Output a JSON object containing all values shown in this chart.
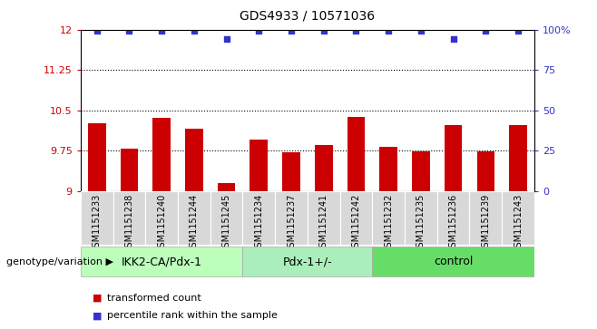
{
  "title": "GDS4933 / 10571036",
  "samples": [
    "GSM1151233",
    "GSM1151238",
    "GSM1151240",
    "GSM1151244",
    "GSM1151245",
    "GSM1151234",
    "GSM1151237",
    "GSM1151241",
    "GSM1151242",
    "GSM1151232",
    "GSM1151235",
    "GSM1151236",
    "GSM1151239",
    "GSM1151243"
  ],
  "bar_values": [
    10.25,
    9.78,
    10.35,
    10.15,
    9.15,
    9.95,
    9.72,
    9.85,
    10.37,
    9.82,
    9.73,
    10.22,
    9.73,
    10.22
  ],
  "percentile_values": [
    99,
    99,
    99,
    99,
    94,
    99,
    99,
    99,
    99,
    99,
    99,
    94,
    99,
    99
  ],
  "bar_color": "#cc0000",
  "dot_color": "#3333cc",
  "ylim_left": [
    9,
    12
  ],
  "ylim_right": [
    0,
    100
  ],
  "yticks_left": [
    9,
    9.75,
    10.5,
    11.25,
    12
  ],
  "yticks_right": [
    0,
    25,
    50,
    75,
    100
  ],
  "ytick_labels_left": [
    "9",
    "9.75",
    "10.5",
    "11.25",
    "12"
  ],
  "ytick_labels_right": [
    "0",
    "25",
    "50",
    "75",
    "100%"
  ],
  "hlines": [
    9.75,
    10.5,
    11.25
  ],
  "groups": [
    {
      "label": "IKK2-CA/Pdx-1",
      "start": 0,
      "end": 5
    },
    {
      "label": "Pdx-1+/-",
      "start": 5,
      "end": 9
    },
    {
      "label": "control",
      "start": 9,
      "end": 14
    }
  ],
  "group_colors": [
    "#bbffbb",
    "#aaeebb",
    "#66dd66"
  ],
  "xlabel_left": "genotype/variation",
  "legend_items": [
    {
      "color": "#cc0000",
      "label": "transformed count"
    },
    {
      "color": "#3333cc",
      "label": "percentile rank within the sample"
    }
  ],
  "title_fontsize": 10,
  "tick_fontsize": 8,
  "label_fontsize": 9,
  "sample_fontsize": 7
}
